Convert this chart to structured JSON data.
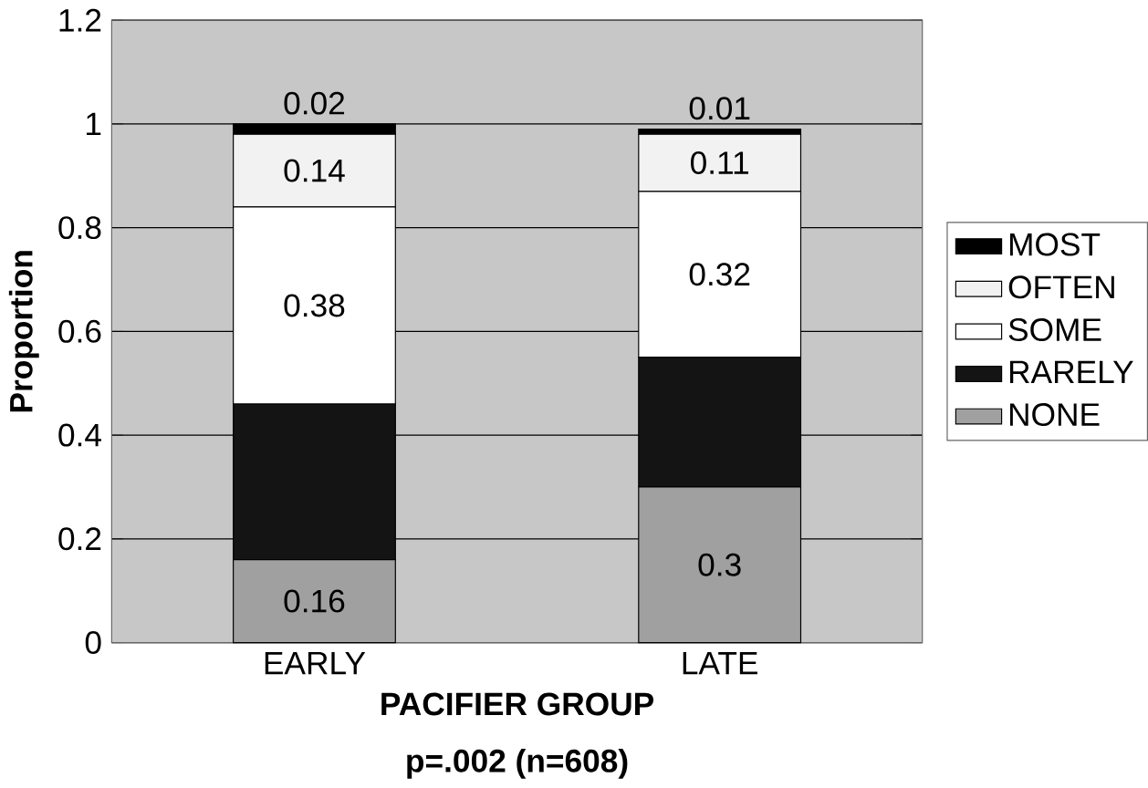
{
  "chart_data": {
    "type": "bar",
    "stacked": true,
    "xlabel": "PACIFIER GROUP",
    "ylabel": "Proportion",
    "annotations": [
      "p=.002 (n=608)"
    ],
    "categories": [
      "EARLY",
      "LATE"
    ],
    "series": [
      {
        "name": "NONE",
        "color": "#a0a0a0",
        "values": [
          0.16,
          0.3
        ],
        "value_labels": [
          "0.16",
          "0.3"
        ]
      },
      {
        "name": "RARELY",
        "color": "#141414",
        "values": [
          0.3,
          0.25
        ],
        "value_labels": [
          null,
          null
        ]
      },
      {
        "name": "SOME",
        "color": "#ffffff",
        "values": [
          0.38,
          0.32
        ],
        "value_labels": [
          "0.38",
          "0.32"
        ]
      },
      {
        "name": "OFTEN",
        "color": "#f2f2f2",
        "values": [
          0.14,
          0.11
        ],
        "value_labels": [
          "0.14",
          "0.11"
        ]
      },
      {
        "name": "MOST",
        "color": "#000000",
        "values": [
          0.02,
          0.01
        ],
        "value_labels": [
          "0.02",
          "0.01"
        ]
      }
    ],
    "ylim": [
      0,
      1.2
    ],
    "yticks": [
      0,
      0.2,
      0.4,
      0.6,
      0.8,
      1,
      1.2
    ],
    "grid": "y",
    "legend": "right"
  }
}
